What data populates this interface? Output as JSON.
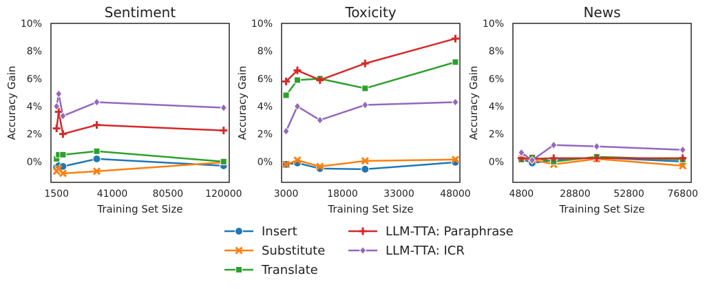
{
  "chart_data": [
    {
      "type": "line",
      "title": "Sentiment",
      "xlabel": "Training Set Size",
      "ylabel": "Accuracy Gain",
      "xlim": [
        -2500,
        124000
      ],
      "ylim": [
        -1.5,
        10
      ],
      "xticks": [
        1500,
        41000,
        80500,
        120000
      ],
      "yticks": [
        0,
        2,
        4,
        6,
        8,
        10
      ],
      "ytick_labels": [
        "0%",
        "2%",
        "4%",
        "6%",
        "8%",
        "10%"
      ],
      "grid": false,
      "series": [
        {
          "name": "Insert",
          "x": [
            1500,
            3000,
            6000,
            30000,
            120000
          ],
          "y": [
            -0.4,
            -0.3,
            -0.35,
            0.2,
            -0.3
          ]
        },
        {
          "name": "Substitute",
          "x": [
            1500,
            3000,
            6000,
            30000,
            120000
          ],
          "y": [
            -0.7,
            -0.5,
            -0.85,
            -0.7,
            -0.05
          ]
        },
        {
          "name": "Translate",
          "x": [
            1500,
            3000,
            6000,
            30000,
            120000
          ],
          "y": [
            0.2,
            0.5,
            0.5,
            0.75,
            0.0
          ]
        },
        {
          "name": "LLM-TTA: Paraphrase",
          "x": [
            1500,
            3000,
            6000,
            30000,
            120000
          ],
          "y": [
            2.4,
            3.6,
            2.0,
            2.65,
            2.25
          ]
        },
        {
          "name": "LLM-TTA: ICR",
          "x": [
            1500,
            3000,
            6000,
            30000,
            120000
          ],
          "y": [
            4.0,
            4.9,
            3.3,
            4.3,
            3.9
          ]
        }
      ]
    },
    {
      "type": "line",
      "title": "Toxicity",
      "xlabel": "Training Set Size",
      "ylabel": "Accuracy Gain",
      "xlim": [
        1800,
        49200
      ],
      "ylim": [
        -1.5,
        10
      ],
      "xticks": [
        3000,
        18000,
        33000,
        48000
      ],
      "yticks": [
        0,
        2,
        4,
        6,
        8,
        10
      ],
      "ytick_labels": [
        "0%",
        "2%",
        "4%",
        "6%",
        "8%",
        "10%"
      ],
      "grid": false,
      "series": [
        {
          "name": "Insert",
          "x": [
            3000,
            6000,
            12000,
            24000,
            48000
          ],
          "y": [
            -0.2,
            -0.1,
            -0.5,
            -0.55,
            -0.05
          ]
        },
        {
          "name": "Substitute",
          "x": [
            3000,
            6000,
            12000,
            24000,
            48000
          ],
          "y": [
            -0.2,
            0.1,
            -0.35,
            0.05,
            0.15
          ]
        },
        {
          "name": "Translate",
          "x": [
            3000,
            6000,
            12000,
            24000,
            48000
          ],
          "y": [
            4.8,
            5.9,
            6.0,
            5.3,
            7.2
          ]
        },
        {
          "name": "LLM-TTA: Paraphrase",
          "x": [
            3000,
            6000,
            12000,
            24000,
            48000
          ],
          "y": [
            5.8,
            6.6,
            5.9,
            7.1,
            8.9
          ]
        },
        {
          "name": "LLM-TTA: ICR",
          "x": [
            3000,
            6000,
            12000,
            24000,
            48000
          ],
          "y": [
            2.2,
            4.0,
            3.0,
            4.1,
            4.3
          ]
        }
      ]
    },
    {
      "type": "line",
      "title": "News",
      "xlabel": "Training Set Size",
      "ylabel": "Accuracy Gain",
      "xlim": [
        1000,
        80600
      ],
      "ylim": [
        -1.5,
        10
      ],
      "xticks": [
        4800,
        28800,
        52800,
        76800
      ],
      "yticks": [
        0,
        2,
        4,
        6,
        8,
        10
      ],
      "ytick_labels": [
        "0%",
        "2%",
        "4%",
        "6%",
        "8%",
        "10%"
      ],
      "grid": false,
      "series": [
        {
          "name": "Insert",
          "x": [
            4800,
            9600,
            19200,
            38400,
            76800
          ],
          "y": [
            0.2,
            -0.1,
            0.1,
            0.3,
            0.0
          ]
        },
        {
          "name": "Substitute",
          "x": [
            4800,
            9600,
            19200,
            38400,
            76800
          ],
          "y": [
            0.2,
            0.15,
            -0.2,
            0.2,
            -0.3
          ]
        },
        {
          "name": "Translate",
          "x": [
            4800,
            9600,
            19200,
            38400,
            76800
          ],
          "y": [
            0.15,
            0.3,
            0.0,
            0.35,
            0.15
          ]
        },
        {
          "name": "LLM-TTA: Paraphrase",
          "x": [
            4800,
            9600,
            19200,
            38400,
            76800
          ],
          "y": [
            0.25,
            0.2,
            0.25,
            0.25,
            0.25
          ]
        },
        {
          "name": "LLM-TTA: ICR",
          "x": [
            4800,
            9600,
            19200,
            38400,
            76800
          ],
          "y": [
            0.65,
            0.1,
            1.2,
            1.1,
            0.85
          ]
        }
      ]
    }
  ],
  "legend": {
    "placement": "bottom-center",
    "items": [
      {
        "label": "Insert",
        "color": "#1f77b4",
        "marker": "circle"
      },
      {
        "label": "Substitute",
        "color": "#ff7f0e",
        "marker": "x"
      },
      {
        "label": "Translate",
        "color": "#2ca02c",
        "marker": "square"
      },
      {
        "label": "LLM-TTA: Paraphrase",
        "color": "#d62728",
        "marker": "plus"
      },
      {
        "label": "LLM-TTA: ICR",
        "color": "#9467bd",
        "marker": "diamond"
      }
    ]
  },
  "series_style": [
    {
      "color": "#1f77b4",
      "marker": "circle"
    },
    {
      "color": "#ff7f0e",
      "marker": "x"
    },
    {
      "color": "#2ca02c",
      "marker": "square"
    },
    {
      "color": "#d62728",
      "marker": "plus"
    },
    {
      "color": "#9467bd",
      "marker": "diamond"
    }
  ]
}
